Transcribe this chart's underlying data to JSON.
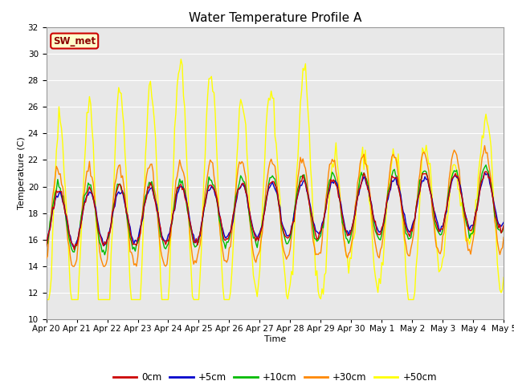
{
  "title": "Water Temperature Profile A",
  "xlabel": "Time",
  "ylabel": "Temperature (C)",
  "ylim": [
    10,
    32
  ],
  "yticks": [
    10,
    12,
    14,
    16,
    18,
    20,
    22,
    24,
    26,
    28,
    30,
    32
  ],
  "x_labels": [
    "Apr 20",
    "Apr 21",
    "Apr 22",
    "Apr 23",
    "Apr 24",
    "Apr 25",
    "Apr 26",
    "Apr 27",
    "Apr 28",
    "Apr 29",
    "Apr 30",
    "May 1",
    "May 2",
    "May 3",
    "May 4",
    "May 5"
  ],
  "series_colors": [
    "#cc0000",
    "#0000cc",
    "#00bb00",
    "#ff8800",
    "#ffff00"
  ],
  "series_labels": [
    "0cm",
    "+5cm",
    "+10cm",
    "+30cm",
    "+50cm"
  ],
  "annotation_text": "SW_met",
  "annotation_bg": "#ffffcc",
  "annotation_border": "#cc0000",
  "title_fontsize": 11,
  "axis_fontsize": 8,
  "tick_fontsize": 7.5,
  "legend_fontsize": 8.5,
  "fig_bg": "#ffffff",
  "plot_bg": "#e8e8e8",
  "grid_color": "#ffffff"
}
